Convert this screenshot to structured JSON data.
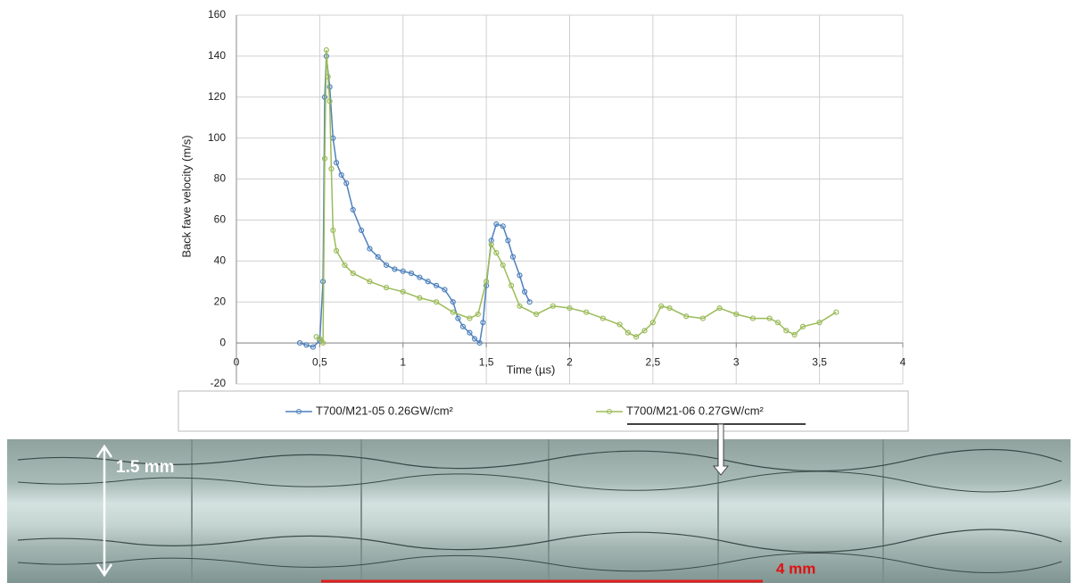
{
  "chart_data": {
    "type": "line",
    "xlabel": "Time (µs)",
    "ylabel": "Back fave velocity (m/s)",
    "xlim": [
      0,
      4
    ],
    "ylim": [
      -20,
      160
    ],
    "xticks": [
      0,
      {
        "value": 0.5,
        "label": "0,5"
      },
      1,
      {
        "value": 1.5,
        "label": "1,5"
      },
      2,
      {
        "value": 2.5,
        "label": "2,5"
      },
      3,
      {
        "value": 3.5,
        "label": "3,5"
      },
      4
    ],
    "yticks": [
      -20,
      0,
      20,
      40,
      60,
      80,
      100,
      120,
      140,
      160
    ],
    "grid": true,
    "legend": "bottom",
    "series": [
      {
        "name": "T700/M21-05 0.26GW/cm²",
        "color": "#4f81bd",
        "x": [
          0.38,
          0.42,
          0.46,
          0.5,
          0.52,
          0.53,
          0.54,
          0.56,
          0.58,
          0.6,
          0.63,
          0.66,
          0.7,
          0.75,
          0.8,
          0.85,
          0.9,
          0.95,
          1.0,
          1.05,
          1.1,
          1.15,
          1.2,
          1.25,
          1.3,
          1.33,
          1.36,
          1.4,
          1.43,
          1.46,
          1.48,
          1.5,
          1.53,
          1.56,
          1.6,
          1.63,
          1.66,
          1.7,
          1.73,
          1.76
        ],
        "values": [
          0,
          -1,
          -2,
          1,
          30,
          120,
          140,
          125,
          100,
          88,
          82,
          78,
          65,
          55,
          46,
          42,
          38,
          36,
          35,
          34,
          32,
          30,
          28,
          26,
          20,
          12,
          8,
          5,
          2,
          0,
          10,
          28,
          50,
          58,
          57,
          50,
          42,
          33,
          25,
          20
        ]
      },
      {
        "name": "T700/M21-06 0.27GW/cm²",
        "color": "#9bbb59",
        "x": [
          0.48,
          0.5,
          0.52,
          0.53,
          0.54,
          0.55,
          0.56,
          0.57,
          0.58,
          0.6,
          0.65,
          0.7,
          0.8,
          0.9,
          1.0,
          1.1,
          1.2,
          1.3,
          1.4,
          1.45,
          1.5,
          1.53,
          1.56,
          1.6,
          1.65,
          1.7,
          1.8,
          1.9,
          2.0,
          2.1,
          2.2,
          2.3,
          2.35,
          2.4,
          2.45,
          2.5,
          2.55,
          2.6,
          2.7,
          2.8,
          2.9,
          3.0,
          3.1,
          3.2,
          3.25,
          3.3,
          3.35,
          3.4,
          3.5,
          3.6
        ],
        "values": [
          3,
          2,
          0,
          90,
          143,
          130,
          118,
          85,
          55,
          45,
          38,
          34,
          30,
          27,
          25,
          22,
          20,
          15,
          12,
          14,
          30,
          48,
          44,
          38,
          28,
          18,
          14,
          18,
          17,
          15,
          12,
          9,
          5,
          3,
          6,
          10,
          18,
          17,
          13,
          12,
          17,
          14,
          12,
          12,
          10,
          6,
          4,
          8,
          10,
          15
        ]
      }
    ],
    "annotations": [
      "1.5 mm",
      "4 mm"
    ]
  }
}
